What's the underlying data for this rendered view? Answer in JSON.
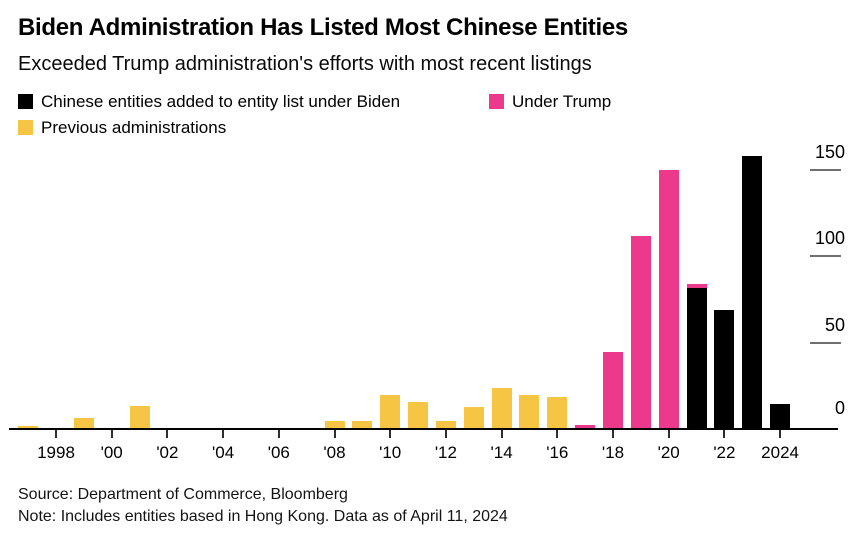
{
  "header": {
    "title": "Biden Administration Has Listed Most Chinese Entities",
    "subtitle": "Exceeded Trump administration's efforts with most recent listings"
  },
  "legend": [
    {
      "label": "Chinese entities added to entity list under Biden",
      "color_key": "black"
    },
    {
      "label": "Under Trump",
      "color_key": "pink"
    },
    {
      "label": "Previous administrations",
      "color_key": "yellow"
    }
  ],
  "footer": {
    "source": "Source: Department of Commerce, Bloomberg",
    "note": "Note: Includes entities based in Hong Kong. Data as of April 11, 2024"
  },
  "chart_data": {
    "type": "bar",
    "stacked": true,
    "title": "Biden Administration Has Listed Most Chinese Entities",
    "subtitle": "Exceeded Trump administration's efforts with most recent listings",
    "xlabel": "",
    "ylabel": "",
    "ylim": [
      0,
      160
    ],
    "yticks": [
      0,
      50,
      100,
      150
    ],
    "legend_position": "top-left",
    "grid": "right-axis tick dashes only",
    "x": [
      1997,
      1998,
      1999,
      2000,
      2001,
      2002,
      2003,
      2004,
      2005,
      2006,
      2007,
      2008,
      2009,
      2010,
      2011,
      2012,
      2013,
      2014,
      2015,
      2016,
      2017,
      2018,
      2019,
      2020,
      2021,
      2022,
      2023,
      2024
    ],
    "series": [
      {
        "name": "Previous administrations",
        "color_key": "yellow",
        "values": [
          1,
          0,
          6,
          0,
          13,
          0,
          0,
          0,
          0,
          0,
          0,
          4,
          4,
          19,
          15,
          4,
          12,
          23,
          19,
          18,
          0,
          0,
          0,
          0,
          0,
          0,
          0,
          0
        ]
      },
      {
        "name": "Chinese entities added to entity list under Biden",
        "color_key": "black",
        "values": [
          0,
          0,
          0,
          0,
          0,
          0,
          0,
          0,
          0,
          0,
          0,
          0,
          0,
          0,
          0,
          0,
          0,
          0,
          0,
          0,
          0,
          0,
          0,
          0,
          81,
          68,
          157,
          14
        ]
      },
      {
        "name": "Under Trump",
        "color_key": "pink",
        "values": [
          0,
          0,
          0,
          0,
          0,
          0,
          0,
          0,
          0,
          0,
          0,
          0,
          0,
          0,
          0,
          0,
          0,
          0,
          0,
          0,
          2,
          44,
          111,
          149,
          2,
          0,
          0,
          0
        ]
      }
    ],
    "colors": {
      "yellow": "#F5C543",
      "pink": "#EC398C",
      "black": "#000000",
      "axis": "#000000",
      "tick": "#2E2E2E",
      "grid_dash": "#6F6F6F"
    },
    "xtick_labels": [
      "1998",
      "'00",
      "'02",
      "'04",
      "'06",
      "'08",
      "'10",
      "'12",
      "'14",
      "'16",
      "'18",
      "'20",
      "'22",
      "2024"
    ]
  }
}
